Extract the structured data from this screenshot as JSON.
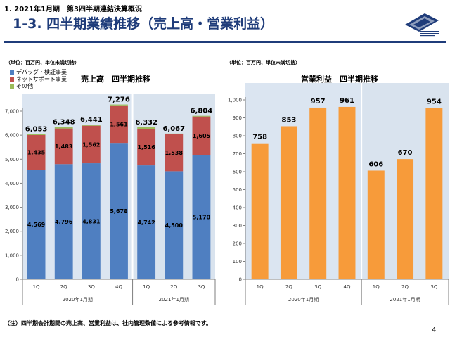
{
  "header": {
    "section": "1. 2021年1月期　第3四半期連結決算概況",
    "title": "1-3. 四半期業績推移（売上高・営業利益）"
  },
  "footnote": "（注）四半期会計期間の売上高、営業利益は、社内管理数値による参考情報です。",
  "page_number": "4",
  "colors": {
    "drugstore": "#4f7fc1",
    "net": "#c0504d",
    "other": "#9bbb59",
    "profit": "#f79b3a",
    "band1": "#dbe5f1",
    "band2": "#d9e3ee"
  },
  "chart_data": [
    {
      "type": "bar",
      "stacked": true,
      "title": "売上高　四半期推移",
      "unit_note": "（単位：百万円、単位未満切捨）",
      "xlabel": "",
      "ylabel": "",
      "categories": [
        "1Q",
        "2Q",
        "3Q",
        "4Q",
        "1Q",
        "2Q",
        "3Q"
      ],
      "period_groups": [
        {
          "label": "2020年1月期",
          "span": 4
        },
        {
          "label": "2021年1月期",
          "span": 3
        }
      ],
      "ylim": [
        0,
        7000
      ],
      "yticks": [
        "0",
        "1,000",
        "2,000",
        "3,000",
        "4,000",
        "5,000",
        "6,000",
        "7,000"
      ],
      "series": [
        {
          "name": "デバッグ・検証事業",
          "values": [
            4569,
            4796,
            4831,
            5678,
            4742,
            4500,
            5170
          ],
          "labels": [
            "4,569",
            "4,796",
            "4,831",
            "5,678",
            "4,742",
            "4,500",
            "5,170"
          ]
        },
        {
          "name": "ネットサポート事業",
          "values": [
            1435,
            1483,
            1562,
            1561,
            1516,
            1538,
            1605
          ],
          "labels": [
            "1,435",
            "1,483",
            "1,562",
            "1,561",
            "1,516",
            "1,538",
            "1,605"
          ]
        },
        {
          "name": "その他",
          "values": [
            49,
            69,
            48,
            37,
            74,
            29,
            29
          ]
        }
      ],
      "totals": [
        6053,
        6348,
        6441,
        7276,
        6332,
        6067,
        6804
      ],
      "total_labels": [
        "6,053",
        "6,348",
        "6,441",
        "7,276",
        "6,332",
        "6,067",
        "6,804"
      ],
      "legend": "top-left",
      "grid": false
    },
    {
      "type": "bar",
      "title": "営業利益　四半期推移",
      "unit_note": "（単位：百万円、単位未満切捨）",
      "xlabel": "",
      "ylabel": "",
      "categories": [
        "1Q",
        "2Q",
        "3Q",
        "4Q",
        "1Q",
        "2Q",
        "3Q"
      ],
      "period_groups": [
        {
          "label": "2020年1月期",
          "span": 4
        },
        {
          "label": "2021年1月期",
          "span": 3
        }
      ],
      "ylim": [
        0,
        1000
      ],
      "yticks": [
        "0",
        "100",
        "200",
        "300",
        "400",
        "500",
        "600",
        "700",
        "800",
        "900",
        "1,000"
      ],
      "values": [
        758,
        853,
        957,
        961,
        606,
        670,
        954
      ],
      "value_labels": [
        "758",
        "853",
        "957",
        "961",
        "606",
        "670",
        "954"
      ],
      "grid": false
    }
  ]
}
